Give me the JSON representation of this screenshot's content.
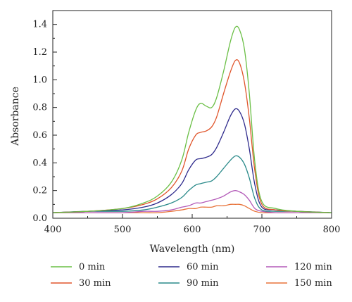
{
  "chart_data": {
    "type": "line",
    "xlabel": "Wavelength (nm)",
    "ylabel": "Absorbance",
    "xlim": [
      400,
      800
    ],
    "ylim": [
      0,
      1.5
    ],
    "xticks": [
      "400",
      "500",
      "600",
      "700",
      "800"
    ],
    "yticks": [
      "0.0",
      "0.2",
      "0.4",
      "0.6",
      "0.8",
      "1.0",
      "1.2",
      "1.4"
    ],
    "grid": false,
    "legend_position": "bottom",
    "series": [
      {
        "name": "0 min",
        "color": "#6abf45",
        "x": [
          400,
          450,
          500,
          530,
          550,
          570,
          585,
          595,
          605,
          612,
          620,
          628,
          635,
          645,
          655,
          662,
          668,
          675,
          682,
          690,
          700,
          720,
          750,
          800
        ],
        "y": [
          0.04,
          0.05,
          0.07,
          0.11,
          0.16,
          0.26,
          0.42,
          0.62,
          0.78,
          0.83,
          0.81,
          0.8,
          0.87,
          1.06,
          1.28,
          1.38,
          1.36,
          1.22,
          0.9,
          0.4,
          0.12,
          0.07,
          0.05,
          0.04
        ]
      },
      {
        "name": "30 min",
        "color": "#e0552b",
        "x": [
          400,
          450,
          500,
          530,
          550,
          570,
          585,
          595,
          605,
          612,
          620,
          628,
          635,
          645,
          655,
          662,
          668,
          675,
          682,
          690,
          700,
          720,
          750,
          800
        ],
        "y": [
          0.04,
          0.05,
          0.07,
          0.1,
          0.14,
          0.22,
          0.34,
          0.5,
          0.6,
          0.62,
          0.63,
          0.66,
          0.73,
          0.9,
          1.06,
          1.14,
          1.12,
          0.98,
          0.72,
          0.34,
          0.1,
          0.06,
          0.05,
          0.04
        ]
      },
      {
        "name": "60 min",
        "color": "#2e2a8c",
        "x": [
          400,
          450,
          500,
          530,
          550,
          570,
          585,
          595,
          605,
          612,
          620,
          628,
          635,
          645,
          655,
          662,
          668,
          675,
          682,
          690,
          700,
          720,
          750,
          800
        ],
        "y": [
          0.04,
          0.05,
          0.06,
          0.08,
          0.11,
          0.17,
          0.25,
          0.35,
          0.42,
          0.43,
          0.44,
          0.46,
          0.51,
          0.62,
          0.74,
          0.79,
          0.77,
          0.68,
          0.5,
          0.24,
          0.08,
          0.06,
          0.05,
          0.04
        ]
      },
      {
        "name": "90 min",
        "color": "#2a8a8a",
        "x": [
          400,
          450,
          500,
          530,
          550,
          570,
          585,
          595,
          605,
          612,
          620,
          628,
          635,
          645,
          655,
          662,
          668,
          675,
          682,
          690,
          700,
          720,
          750,
          800
        ],
        "y": [
          0.04,
          0.05,
          0.05,
          0.06,
          0.08,
          0.11,
          0.15,
          0.2,
          0.24,
          0.25,
          0.26,
          0.27,
          0.3,
          0.36,
          0.42,
          0.45,
          0.44,
          0.39,
          0.29,
          0.14,
          0.06,
          0.05,
          0.05,
          0.04
        ]
      },
      {
        "name": "120 min",
        "color": "#b35ab8",
        "x": [
          400,
          450,
          500,
          530,
          550,
          570,
          585,
          595,
          605,
          612,
          620,
          628,
          635,
          645,
          655,
          662,
          668,
          675,
          682,
          690,
          700,
          720,
          750,
          800
        ],
        "y": [
          0.04,
          0.04,
          0.04,
          0.05,
          0.05,
          0.06,
          0.08,
          0.09,
          0.11,
          0.11,
          0.12,
          0.13,
          0.14,
          0.16,
          0.19,
          0.2,
          0.19,
          0.17,
          0.13,
          0.07,
          0.05,
          0.04,
          0.04,
          0.04
        ]
      },
      {
        "name": "150 min",
        "color": "#e8733a",
        "x": [
          400,
          450,
          500,
          530,
          550,
          570,
          585,
          595,
          605,
          612,
          620,
          628,
          635,
          645,
          655,
          662,
          668,
          675,
          682,
          690,
          700,
          720,
          750,
          800
        ],
        "y": [
          0.04,
          0.04,
          0.04,
          0.04,
          0.04,
          0.05,
          0.06,
          0.07,
          0.07,
          0.08,
          0.08,
          0.08,
          0.09,
          0.09,
          0.1,
          0.1,
          0.1,
          0.09,
          0.07,
          0.05,
          0.04,
          0.04,
          0.04,
          0.04
        ]
      }
    ]
  }
}
